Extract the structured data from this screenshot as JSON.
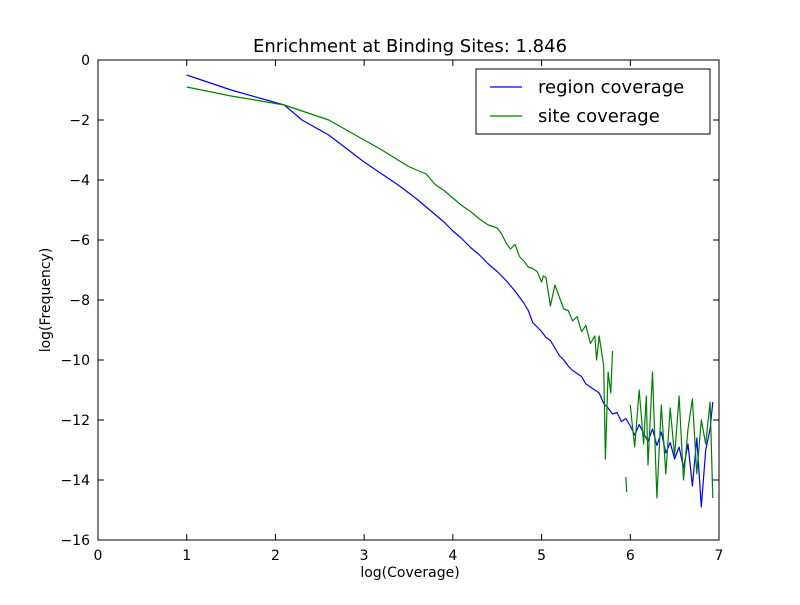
{
  "colors": {
    "region": "#0000ff",
    "site": "#008000",
    "axis": "#000000",
    "background": "#ffffff"
  },
  "chart_data": {
    "type": "line",
    "title": "Enrichment at Binding Sites: 1.846",
    "xlabel": "log(Coverage)",
    "ylabel": "log(Frequency)",
    "xlim": [
      0,
      7
    ],
    "ylim": [
      -16,
      0
    ],
    "xticks": [
      0,
      1,
      2,
      3,
      4,
      5,
      6,
      7
    ],
    "yticks": [
      0,
      -2,
      -4,
      -6,
      -8,
      -10,
      -12,
      -14,
      -16
    ],
    "grid": false,
    "legend_position": "top-right",
    "series": [
      {
        "name": "region coverage",
        "color": "#0000ff",
        "x": [
          1.0,
          1.5,
          2.1,
          2.3,
          2.6,
          2.8,
          3.0,
          3.2,
          3.4,
          3.6,
          3.8,
          3.9,
          4.0,
          4.1,
          4.2,
          4.3,
          4.4,
          4.5,
          4.6,
          4.7,
          4.8,
          4.85,
          4.9,
          4.95,
          5.0,
          5.05,
          5.1,
          5.15,
          5.2,
          5.25,
          5.3,
          5.35,
          5.4,
          5.45,
          5.5,
          5.55,
          5.6,
          5.65,
          5.7,
          5.75,
          5.8,
          5.85,
          5.9,
          5.95,
          6.0,
          6.05,
          6.1,
          6.15,
          6.2,
          6.25,
          6.3,
          6.35,
          6.4,
          6.45,
          6.5,
          6.55,
          6.6,
          6.65,
          6.7,
          6.75,
          6.8,
          6.85,
          6.9,
          6.93
        ],
        "y": [
          -0.5,
          -1.0,
          -1.5,
          -2.0,
          -2.5,
          -2.95,
          -3.4,
          -3.8,
          -4.2,
          -4.65,
          -5.15,
          -5.4,
          -5.7,
          -5.95,
          -6.25,
          -6.5,
          -6.8,
          -7.05,
          -7.35,
          -7.7,
          -8.1,
          -8.35,
          -8.75,
          -8.9,
          -9.05,
          -9.25,
          -9.35,
          -9.6,
          -9.85,
          -10.0,
          -10.2,
          -10.35,
          -10.45,
          -10.55,
          -10.8,
          -10.9,
          -11.0,
          -11.1,
          -11.45,
          -11.6,
          -11.8,
          -11.75,
          -12.05,
          -11.95,
          -12.2,
          -12.5,
          -12.15,
          -12.45,
          -12.7,
          -12.3,
          -12.85,
          -12.4,
          -13.1,
          -12.75,
          -13.3,
          -12.9,
          -13.6,
          -12.8,
          -14.2,
          -12.6,
          -14.9,
          -13.0,
          -12.3,
          -11.4
        ]
      },
      {
        "name": "site coverage",
        "color": "#008000",
        "x": [
          1.0,
          1.5,
          2.1,
          2.6,
          2.9,
          3.2,
          3.5,
          3.7,
          3.8,
          3.9,
          4.0,
          4.1,
          4.2,
          4.3,
          4.4,
          4.5,
          4.55,
          4.6,
          4.65,
          4.7,
          4.75,
          4.8,
          4.85,
          4.9,
          4.95,
          5.0,
          5.02,
          5.05,
          5.1,
          5.15,
          5.2,
          5.25,
          5.3,
          5.35,
          5.4,
          5.45,
          5.5,
          5.55,
          5.6,
          5.62,
          5.65,
          5.7,
          5.72,
          5.75,
          5.78,
          5.8,
          null,
          6.0,
          6.02,
          6.05,
          6.1,
          6.15,
          6.18,
          6.2,
          6.25,
          6.3,
          6.35,
          6.4,
          6.45,
          6.5,
          6.55,
          6.6,
          6.65,
          6.7,
          6.75,
          6.8,
          6.85,
          6.9,
          6.93,
          null,
          5.95,
          5.96
        ],
        "y": [
          -0.9,
          -1.2,
          -1.5,
          -2.0,
          -2.5,
          -3.0,
          -3.55,
          -3.8,
          -4.15,
          -4.35,
          -4.6,
          -4.85,
          -5.05,
          -5.3,
          -5.5,
          -5.6,
          -5.8,
          -6.1,
          -6.3,
          -6.15,
          -6.55,
          -6.7,
          -6.9,
          -6.95,
          -7.05,
          -7.4,
          -7.2,
          -7.25,
          -8.2,
          -7.5,
          -7.9,
          -8.3,
          -8.35,
          -8.7,
          -8.55,
          -9.05,
          -8.85,
          -9.45,
          -9.2,
          -10.0,
          -9.2,
          -10.2,
          -13.3,
          -10.4,
          -11.1,
          -9.7,
          null,
          -11.5,
          -12.1,
          -12.9,
          -11.0,
          -12.8,
          -11.2,
          -13.5,
          -10.4,
          -14.6,
          -11.5,
          -13.8,
          -11.6,
          -13.2,
          -11.2,
          -14.0,
          -12.3,
          -11.3,
          -13.8,
          -12.0,
          -12.8,
          -11.4,
          -14.6,
          null,
          -13.9,
          -14.4
        ]
      }
    ]
  }
}
